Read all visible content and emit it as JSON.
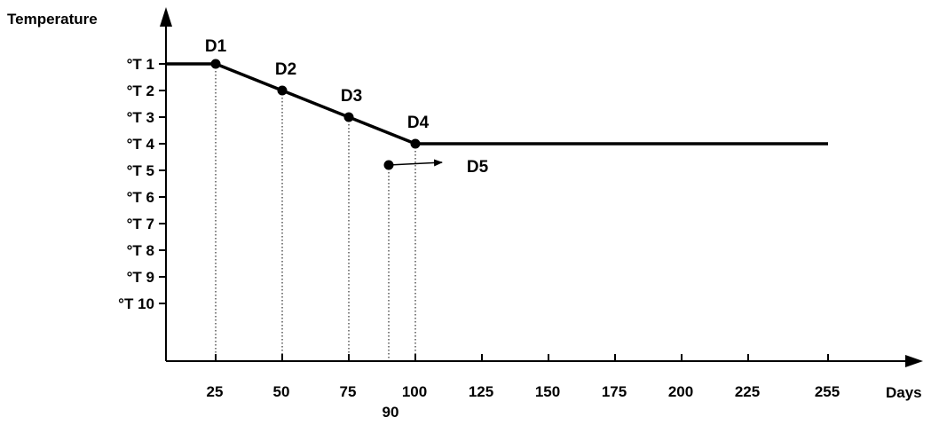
{
  "chart_data": {
    "type": "line",
    "ylabel": "Temperature",
    "xlabel": "Days",
    "y_tick_labels": [
      "°T 1",
      "°T 2",
      "°T 3",
      "°T 4",
      "°T 5",
      "°T 6",
      "°T 7",
      "°T 8",
      "°T 9",
      "°T 10"
    ],
    "x_tick_labels": [
      "25",
      "50",
      "75",
      "100",
      "125",
      "150",
      "175",
      "200",
      "225",
      "255"
    ],
    "x_ticks": [
      25,
      50,
      75,
      100,
      125,
      150,
      175,
      200,
      225,
      255
    ],
    "extra_x_tick": {
      "x": 90,
      "label": "90"
    },
    "xlim": [
      0,
      255
    ],
    "ylim_levels": [
      1,
      10
    ],
    "grid": false,
    "series": [
      {
        "values": [
          {
            "x": 0,
            "y": 1
          },
          {
            "x": 25,
            "y": 1
          },
          {
            "x": 50,
            "y": 2
          },
          {
            "x": 75,
            "y": 3
          },
          {
            "x": 100,
            "y": 4
          },
          {
            "x": 255,
            "y": 4
          }
        ]
      }
    ],
    "points": [
      {
        "label": "D1",
        "x": 25,
        "y": 1
      },
      {
        "label": "D2",
        "x": 50,
        "y": 2
      },
      {
        "label": "D3",
        "x": 75,
        "y": 3
      },
      {
        "label": "D4",
        "x": 100,
        "y": 4
      },
      {
        "label": "D5",
        "x": 90,
        "y": 4.8
      }
    ],
    "dotted_guides_x": [
      25,
      50,
      75,
      90,
      100
    ]
  }
}
